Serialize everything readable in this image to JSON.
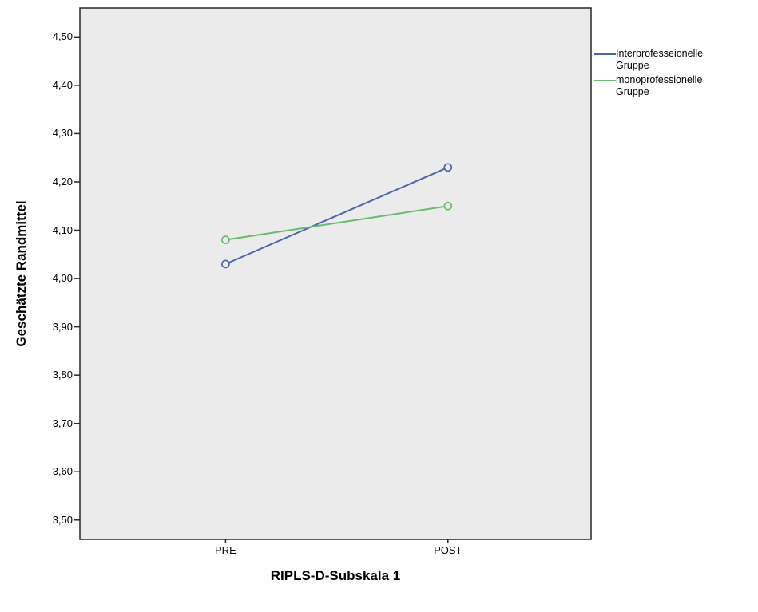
{
  "chart_data": {
    "type": "line",
    "title": "",
    "categories": [
      "PRE",
      "POST"
    ],
    "series": [
      {
        "name": "Interprofesseionelle Gruppe",
        "color": "#4e63ad",
        "values": [
          4.03,
          4.23
        ]
      },
      {
        "name": "monoprofessionelle Gruppe",
        "color": "#68bb6a",
        "values": [
          4.08,
          4.15
        ]
      }
    ],
    "xlabel": "RIPLS-D-Subskala 1",
    "ylabel": "Geschätzte Randmittel",
    "ylim": [
      3.46,
      4.56
    ],
    "yticks": [
      3.5,
      3.6,
      3.7,
      3.8,
      3.9,
      4.0,
      4.1,
      4.2,
      4.3,
      4.4,
      4.5
    ],
    "ytick_labels": [
      "3,50",
      "3,60",
      "3,70",
      "3,80",
      "3,90",
      "4,00",
      "4,10",
      "4,20",
      "4,30",
      "4,40",
      "4,50"
    ],
    "grid": false,
    "legend_position": "top-right",
    "marker": "open-circle",
    "plot_background": "#ebebeb",
    "frame_color": "#262626"
  }
}
